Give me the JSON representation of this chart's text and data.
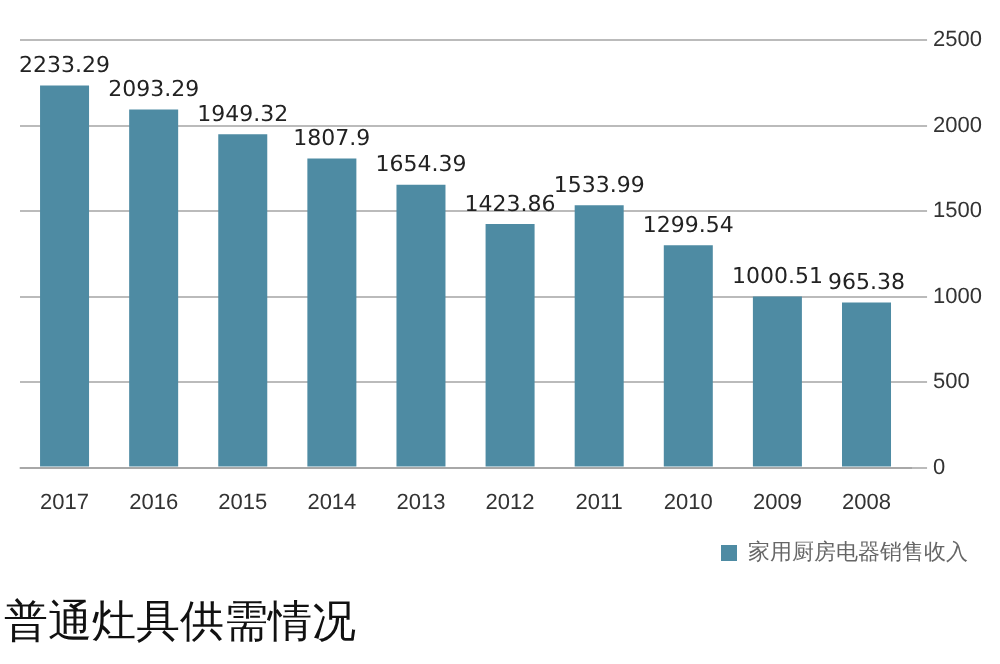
{
  "chart_data": {
    "type": "bar",
    "title": "普通灶具供需情况",
    "categories": [
      "2017",
      "2016",
      "2015",
      "2014",
      "2013",
      "2012",
      "2011",
      "2010",
      "2009",
      "2008"
    ],
    "series": [
      {
        "name": "家用厨房电器销售收入",
        "color": "#4e8ba3",
        "values": [
          2233.29,
          2093.29,
          1949.32,
          1807.9,
          1654.39,
          1423.86,
          1533.99,
          1299.54,
          1000.51,
          965.38
        ]
      }
    ],
    "ylim": [
      0,
      2500
    ],
    "yticks": [
      0,
      500,
      1000,
      1500,
      2000,
      2500
    ],
    "grid": "y",
    "legend": "bottom",
    "data_labels": true
  }
}
